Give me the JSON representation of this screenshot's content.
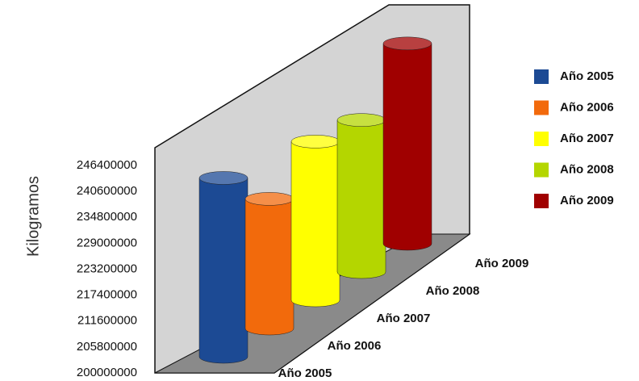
{
  "chart_data": {
    "type": "bar3d",
    "y_label": "Kilogramos",
    "categories": [
      "Año 2005",
      "Año 2006",
      "Año 2007",
      "Año 2008",
      "Año 2009"
    ],
    "values": [
      240000000,
      229000000,
      235500000,
      234000000,
      244800000
    ],
    "colors": [
      "#1c4a94",
      "#f26a0c",
      "#ffff00",
      "#b4d600",
      "#a00000"
    ],
    "ylim": [
      200000000,
      246400000
    ],
    "yticks": [
      200000000,
      205800000,
      211600000,
      217400000,
      223200000,
      229000000,
      234800000,
      240600000,
      246400000
    ]
  }
}
